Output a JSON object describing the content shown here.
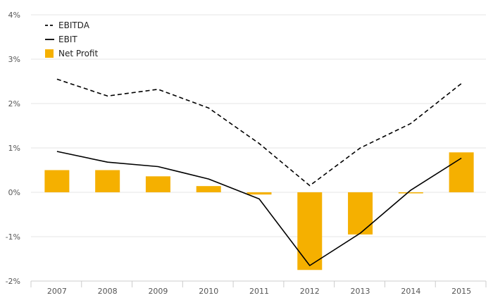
{
  "chart_data": {
    "type": "bar",
    "categories": [
      "2007",
      "2008",
      "2009",
      "2010",
      "2011",
      "2012",
      "2013",
      "2014",
      "2015"
    ],
    "series": [
      {
        "name": "EBITDA",
        "type": "line",
        "style": "dashed",
        "values": [
          2.55,
          2.17,
          2.32,
          1.9,
          1.1,
          0.15,
          1.0,
          1.55,
          2.45
        ]
      },
      {
        "name": "EBIT",
        "type": "line",
        "style": "solid",
        "values": [
          0.92,
          0.68,
          0.58,
          0.3,
          -0.15,
          -1.65,
          -0.92,
          0.05,
          0.77
        ]
      },
      {
        "name": "Net Profit",
        "type": "bar",
        "values": [
          0.5,
          0.5,
          0.36,
          0.14,
          -0.05,
          -1.75,
          -0.95,
          -0.02,
          0.9
        ]
      }
    ],
    "ylim": [
      -2,
      4
    ],
    "yticks": [
      "4%",
      "3%",
      "2%",
      "1%",
      "0%",
      "-1%",
      "-2%"
    ],
    "ytick_values": [
      4,
      3,
      2,
      1,
      0,
      -1,
      -2
    ],
    "grid": true,
    "legend_position": "top-left",
    "colors": {
      "bar": "#f5b000",
      "line": "#000000",
      "grid": "#e6e6e6",
      "axis": "#cccccc"
    }
  }
}
